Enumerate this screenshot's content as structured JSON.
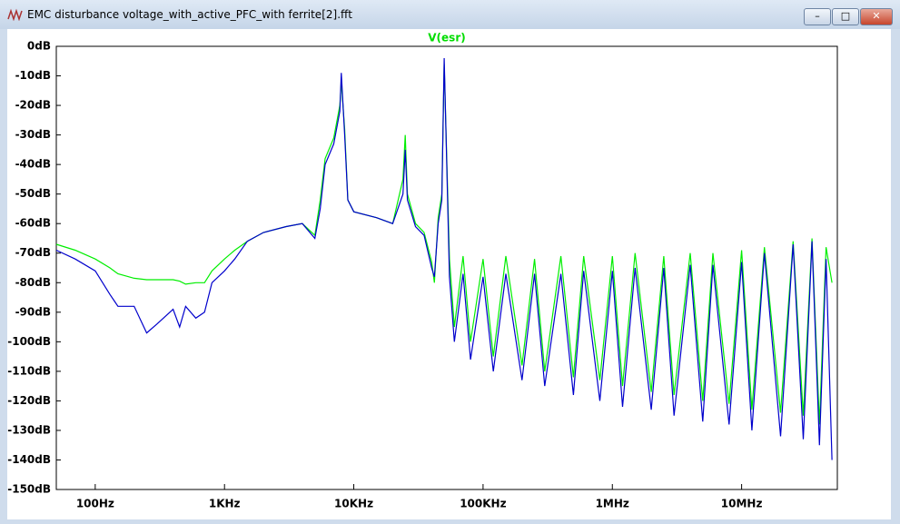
{
  "window": {
    "title": "EMC disturbance voltage_with_active_PFC_with ferrite[2].fft"
  },
  "chart_data": {
    "type": "line",
    "xscale": "log",
    "grid": false,
    "x": [
      50,
      70,
      100,
      130,
      150,
      200,
      250,
      300,
      400,
      450,
      500,
      600,
      700,
      800,
      1000,
      1200,
      1500,
      2000,
      3000,
      4000,
      5000,
      5500,
      6000,
      7000,
      7800,
      8000,
      8500,
      9000,
      10000,
      15000,
      20000,
      24000,
      25000,
      26000,
      30000,
      35000,
      40000,
      42000,
      45000,
      48000,
      50000,
      55000,
      60000,
      70000,
      80000,
      100000,
      120000,
      150000,
      200000,
      250000,
      300000,
      400000,
      500000,
      600000,
      800000,
      1000000,
      1200000,
      1500000,
      2000000,
      2500000,
      3000000,
      4000000,
      5000000,
      6000000,
      8000000,
      10000000,
      12000000,
      15000000,
      20000000,
      25000000,
      30000000,
      35000000,
      40000000,
      45000000,
      50000000
    ],
    "series": [
      {
        "name": "V(esr)",
        "color": "#00ee00",
        "values": [
          -67,
          -69,
          -72,
          -75,
          -77,
          -78.5,
          -79,
          -79,
          -79,
          -79.5,
          -80.5,
          -80,
          -80,
          -76,
          -72,
          -69,
          -66,
          -63,
          -61,
          -60,
          -64,
          -52,
          -38,
          -31,
          -20,
          -12,
          -28,
          -52,
          -56,
          -58,
          -60,
          -45,
          -30,
          -50,
          -60,
          -63,
          -73,
          -80,
          -58,
          -50,
          -6,
          -72,
          -95,
          -71,
          -100,
          -72,
          -105,
          -71,
          -108,
          -72,
          -110,
          -71,
          -112,
          -71,
          -113,
          -71,
          -115,
          -70,
          -117,
          -71,
          -118,
          -70,
          -120,
          -70,
          -121,
          -69,
          -123,
          -68,
          -124,
          -66,
          -125,
          -65,
          -128,
          -68,
          -80
        ]
      },
      {
        "color": "#0000cc",
        "values": [
          -69,
          -72,
          -76,
          -84,
          -88,
          -88,
          -97,
          -94,
          -89,
          -95,
          -88,
          -92,
          -90,
          -80,
          -76,
          -72,
          -66,
          -63,
          -61,
          -60,
          -65,
          -55,
          -40,
          -33,
          -22,
          -9,
          -30,
          -52,
          -56,
          -58,
          -60,
          -50,
          -35,
          -52,
          -61,
          -64,
          -75,
          -78,
          -60,
          -52,
          -4,
          -78,
          -100,
          -77,
          -106,
          -78,
          -110,
          -77,
          -113,
          -77,
          -115,
          -77,
          -118,
          -76,
          -120,
          -76,
          -122,
          -75,
          -123,
          -75,
          -125,
          -74,
          -127,
          -74,
          -128,
          -73,
          -130,
          -70,
          -132,
          -67,
          -133,
          -66,
          -135,
          -72,
          -140
        ]
      }
    ],
    "xlim": [
      50,
      55000000
    ],
    "xticks": [
      {
        "value": 100,
        "label": "100Hz"
      },
      {
        "value": 1000,
        "label": "1KHz"
      },
      {
        "value": 10000,
        "label": "10KHz"
      },
      {
        "value": 100000,
        "label": "100KHz"
      },
      {
        "value": 1000000,
        "label": "1MHz"
      },
      {
        "value": 10000000,
        "label": "10MHz"
      }
    ],
    "ylim": [
      -150,
      0
    ],
    "yticks": [
      {
        "value": 0,
        "label": "0dB"
      },
      {
        "value": -10,
        "label": "-10dB"
      },
      {
        "value": -20,
        "label": "-20dB"
      },
      {
        "value": -30,
        "label": "-30dB"
      },
      {
        "value": -40,
        "label": "-40dB"
      },
      {
        "value": -50,
        "label": "-50dB"
      },
      {
        "value": -60,
        "label": "-60dB"
      },
      {
        "value": -70,
        "label": "-70dB"
      },
      {
        "value": -80,
        "label": "-80dB"
      },
      {
        "value": -90,
        "label": "-90dB"
      },
      {
        "value": -100,
        "label": "-100dB"
      },
      {
        "value": -110,
        "label": "-110dB"
      },
      {
        "value": -120,
        "label": "-120dB"
      },
      {
        "value": -130,
        "label": "-130dB"
      },
      {
        "value": -140,
        "label": "-140dB"
      },
      {
        "value": -150,
        "label": "-150dB"
      }
    ]
  }
}
